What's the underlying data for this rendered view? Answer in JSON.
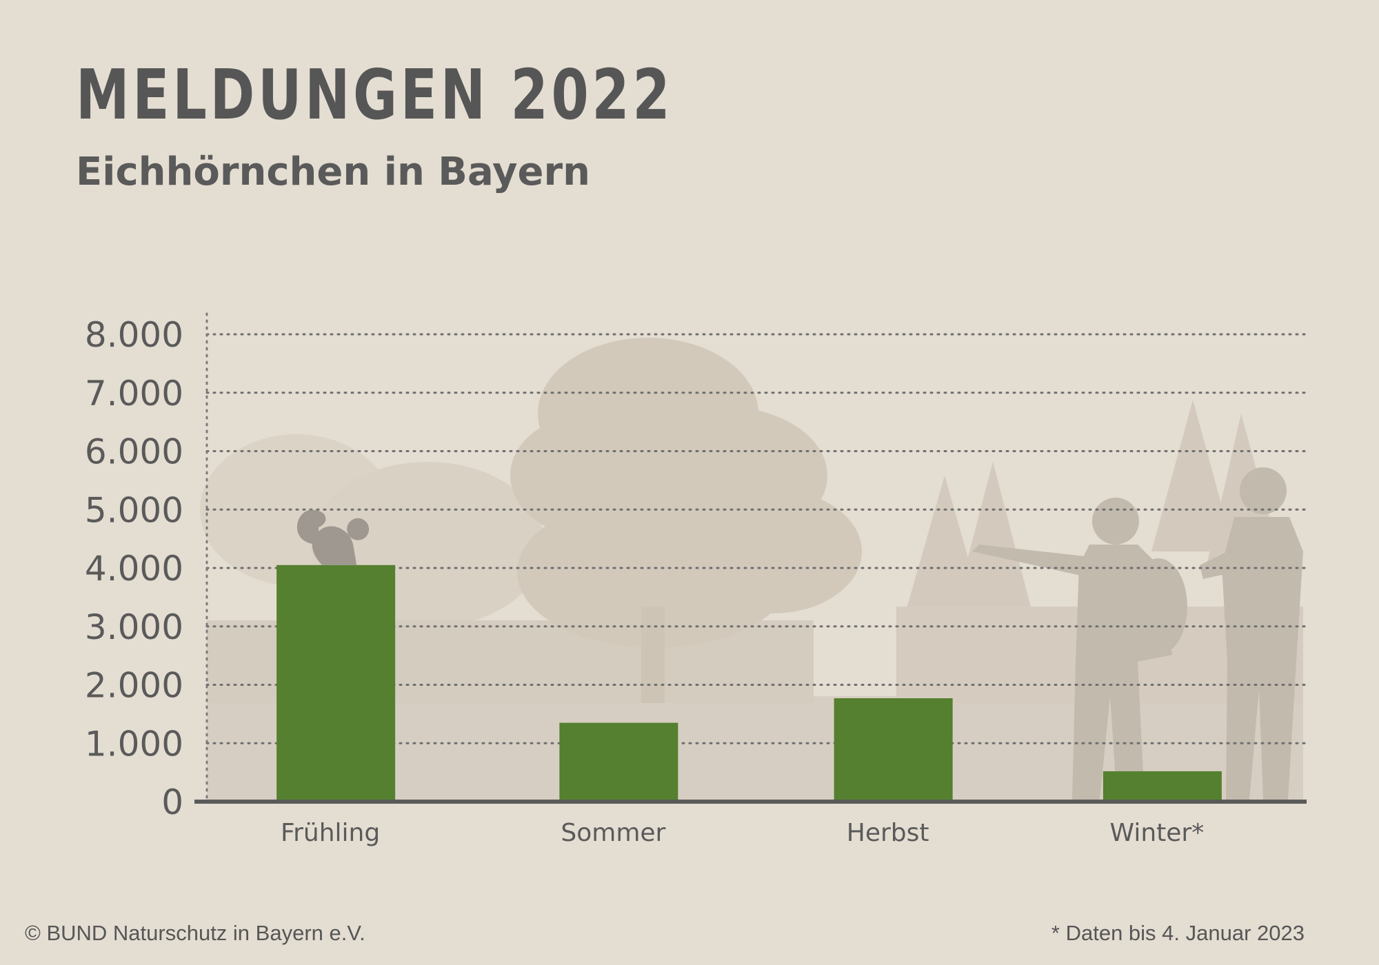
{
  "header": {
    "title": "MELDUNGEN 2022",
    "subtitle": "Eichhörnchen in Bayern"
  },
  "footer": {
    "copyright": "© BUND Naturschutz in Bayern e.V.",
    "note": "* Daten bis 4. Januar 2023"
  },
  "colors": {
    "background": "#e4ddd2",
    "bar": "#55802f",
    "text": "#565656",
    "silhouette": "#cfc6b8"
  },
  "chart_data": {
    "type": "bar",
    "title": "MELDUNGEN 2022",
    "subtitle": "Eichhörnchen in Bayern",
    "xlabel": "",
    "ylabel": "",
    "categories": [
      "Frühling",
      "Sommer",
      "Herbst",
      "Winter*"
    ],
    "values": [
      4050,
      1350,
      1770,
      520
    ],
    "ylim": [
      0,
      8000
    ],
    "yticks": [
      0,
      1000,
      2000,
      3000,
      4000,
      5000,
      6000,
      7000,
      8000
    ],
    "ytick_labels": [
      "0",
      "1.000",
      "2.000",
      "3.000",
      "4.000",
      "5.000",
      "6.000",
      "7.000",
      "8.000"
    ],
    "grid": true,
    "legend": "none"
  }
}
